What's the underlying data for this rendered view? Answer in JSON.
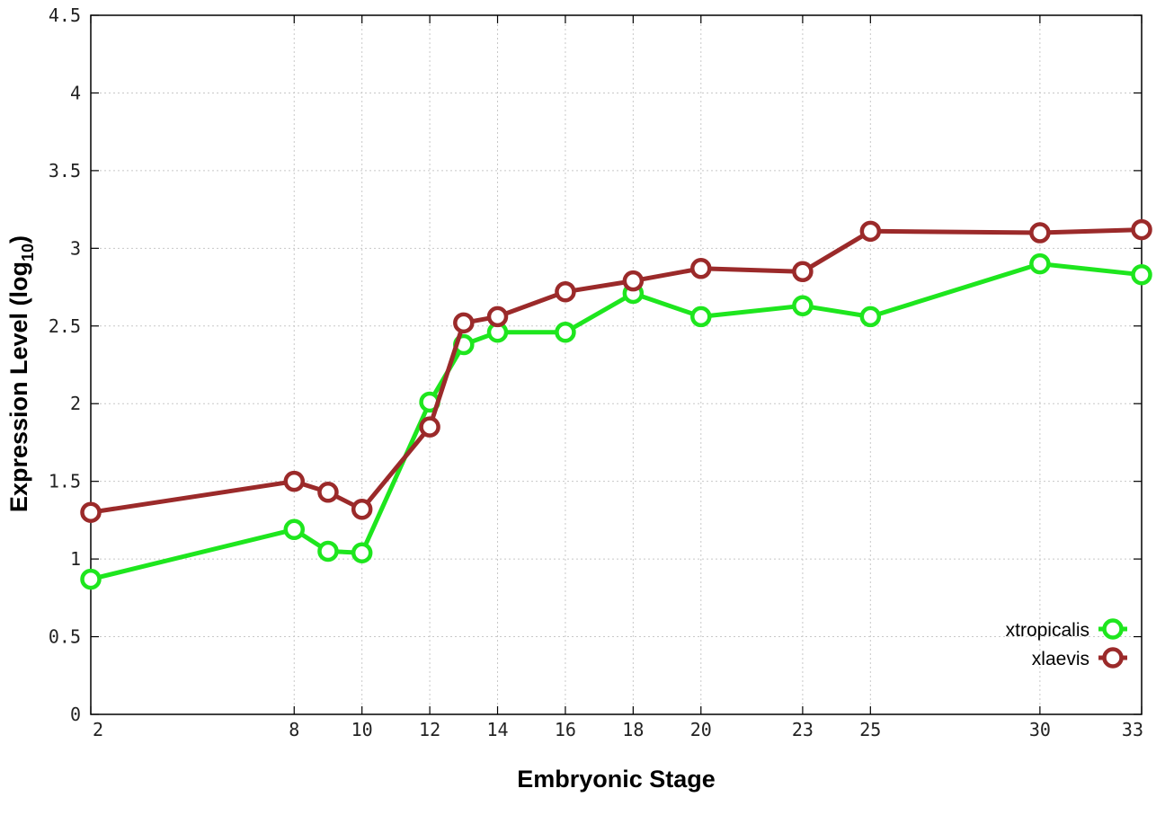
{
  "chart_data": {
    "type": "line",
    "title": "",
    "xlabel": "Embryonic Stage",
    "ylabel_main": "Expression Level (log",
    "ylabel_sub": "10",
    "ylabel_close": ")",
    "x": [
      2,
      8,
      9,
      10,
      12,
      13,
      14,
      16,
      18,
      20,
      23,
      25,
      30,
      33
    ],
    "xticks": [
      2,
      8,
      10,
      12,
      14,
      16,
      18,
      20,
      23,
      25,
      30,
      33
    ],
    "xtick_labels": [
      "2",
      "8",
      "10",
      "12",
      "14",
      "16",
      "18",
      "20",
      "23",
      "25",
      "30",
      "33"
    ],
    "yticks": [
      0,
      0.5,
      1,
      1.5,
      2,
      2.5,
      3,
      3.5,
      4,
      4.5
    ],
    "ytick_labels": [
      "0",
      "0.5",
      "1",
      "1.5",
      "2",
      "2.5",
      "3",
      "3.5",
      "4",
      "4.5"
    ],
    "xlim": [
      2,
      33
    ],
    "ylim": [
      0,
      4.5
    ],
    "grid": true,
    "legend_position": "bottom-right",
    "series": [
      {
        "name": "xtropicalis",
        "color": "#1ee61e",
        "values": [
          0.87,
          1.19,
          1.05,
          1.04,
          2.01,
          2.38,
          2.46,
          2.46,
          2.71,
          2.56,
          2.63,
          2.56,
          2.9,
          2.83
        ]
      },
      {
        "name": "xlaevis",
        "color": "#9b2a2a",
        "values": [
          1.3,
          1.5,
          1.43,
          1.32,
          1.85,
          2.52,
          2.56,
          2.72,
          2.79,
          2.87,
          2.85,
          3.11,
          3.1,
          3.12
        ]
      }
    ]
  }
}
